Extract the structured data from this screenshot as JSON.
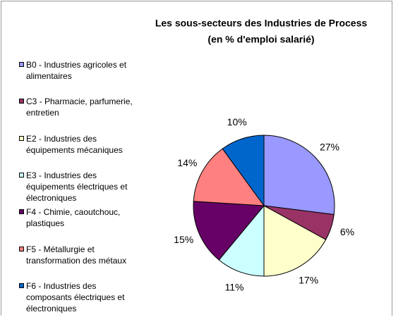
{
  "chart_data": {
    "type": "pie",
    "title": "Les sous-secteurs des Industries de Process",
    "subtitle": "(en % d'emploi salarié)",
    "categories": [
      "B0 - Industries agricoles et alimentaires",
      "C3 - Pharmacie, parfumerie, entretien",
      "E2 - Industries des équipements mécaniques",
      "E3 - Industries des équipements électriques et électroniques",
      "F4 - Chimie, caoutchouc, plastiques",
      "F5 - Métallurgie et transformation des métaux",
      "F6 - Industries des composants électriques et électroniques"
    ],
    "values": [
      27,
      6,
      17,
      11,
      15,
      14,
      10
    ],
    "value_labels": [
      "27%",
      "6%",
      "17%",
      "11%",
      "15%",
      "14%",
      "10%"
    ],
    "colors": [
      "#9999ff",
      "#993366",
      "#ffffcc",
      "#ccffff",
      "#660066",
      "#ff8080",
      "#0066cc"
    ],
    "legend": "left"
  }
}
